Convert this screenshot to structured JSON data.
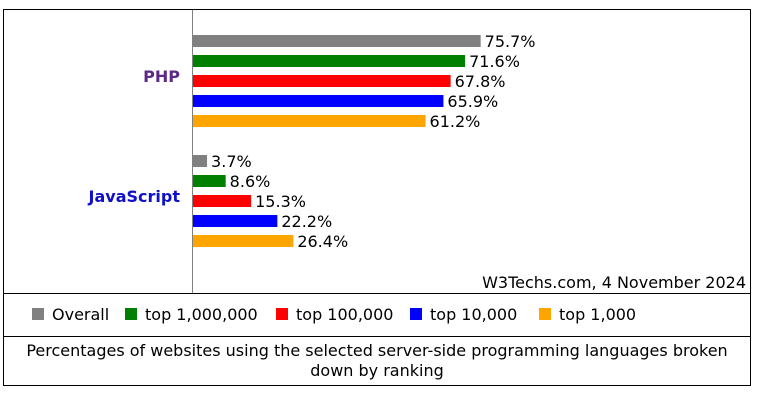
{
  "chart_data": {
    "type": "bar",
    "orientation": "horizontal",
    "categories": [
      "PHP",
      "JavaScript"
    ],
    "category_colors": [
      "#5b2a86",
      "#1010c8"
    ],
    "series": [
      {
        "name": "Overall",
        "color": "#808080",
        "values": [
          75.7,
          3.7
        ],
        "labels": [
          "75.7%",
          "3.7%"
        ]
      },
      {
        "name": "top 1,000,000",
        "color": "#008000",
        "values": [
          71.6,
          8.6
        ],
        "labels": [
          "71.6%",
          "8.6%"
        ]
      },
      {
        "name": "top 100,000",
        "color": "#ff0000",
        "values": [
          67.8,
          15.3
        ],
        "labels": [
          "67.8%",
          "15.3%"
        ]
      },
      {
        "name": "top 10,000",
        "color": "#0000ff",
        "values": [
          65.9,
          22.2
        ],
        "labels": [
          "65.9%",
          "22.2%"
        ]
      },
      {
        "name": "top 1,000",
        "color": "#ffa500",
        "values": [
          61.2,
          26.4
        ],
        "labels": [
          "61.2%",
          "26.4%"
        ]
      }
    ],
    "xlim": [
      0,
      100
    ],
    "grid": false,
    "legend_position": "bottom",
    "credit": "W3Techs.com, 4 November 2024",
    "caption": "Percentages of websites using the selected server-side programming languages broken down by ranking"
  }
}
